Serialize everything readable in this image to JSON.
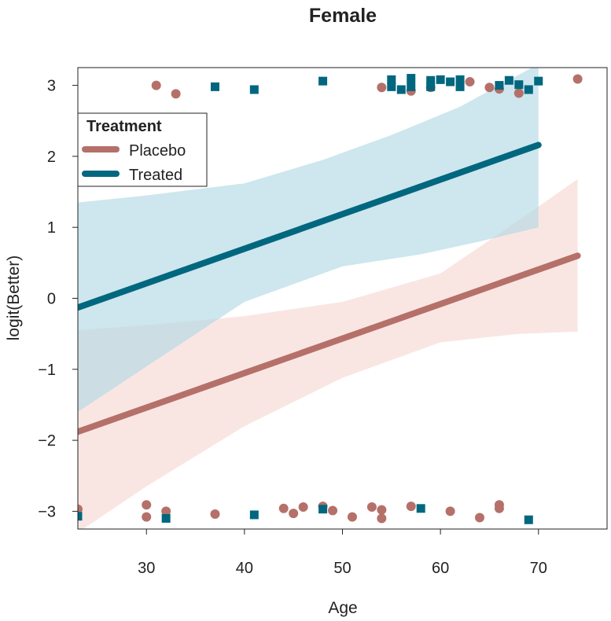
{
  "chart_data": {
    "type": "line",
    "title": "Female",
    "xlabel": "Age",
    "ylabel": "logit(Better)",
    "xlim": [
      23,
      77
    ],
    "ylim": [
      -3.25,
      3.25
    ],
    "xticks": [
      30,
      40,
      50,
      60,
      70
    ],
    "yticks": [
      -3,
      -2,
      -1,
      0,
      1,
      2,
      3
    ],
    "ytick_labels": [
      "−3",
      "−2",
      "−1",
      "0",
      "1",
      "2",
      "3"
    ],
    "grid": false,
    "legend": {
      "title": "Treatment",
      "placement": "top-left",
      "entries": [
        "Placebo",
        "Treated"
      ]
    },
    "series": [
      {
        "name": "Placebo",
        "color": "#B5706A",
        "band_color": "#F6DCD7",
        "marker": "circle",
        "fit": [
          [
            23,
            -1.88
          ],
          [
            74,
            0.6
          ]
        ],
        "ci_upper": [
          [
            23,
            -0.45
          ],
          [
            30,
            -0.38
          ],
          [
            40,
            -0.25
          ],
          [
            50,
            -0.05
          ],
          [
            60,
            0.35
          ],
          [
            68,
            1.1
          ],
          [
            74,
            1.68
          ]
        ],
        "ci_lower": [
          [
            23,
            -3.3
          ],
          [
            30,
            -2.65
          ],
          [
            40,
            -1.8
          ],
          [
            50,
            -1.12
          ],
          [
            60,
            -0.62
          ],
          [
            68,
            -0.5
          ],
          [
            74,
            -0.47
          ]
        ],
        "points_top": [
          [
            31,
            3.0
          ],
          [
            33,
            2.88
          ],
          [
            54,
            2.97
          ],
          [
            57,
            2.92
          ],
          [
            59,
            2.97
          ],
          [
            63,
            3.05
          ],
          [
            65,
            2.97
          ],
          [
            66,
            2.95
          ],
          [
            68,
            2.89
          ],
          [
            74,
            3.09
          ]
        ],
        "points_bottom": [
          [
            23,
            -2.97
          ],
          [
            30,
            -2.91
          ],
          [
            30,
            -3.08
          ],
          [
            32,
            -3.0
          ],
          [
            37,
            -3.04
          ],
          [
            44,
            -2.96
          ],
          [
            45,
            -3.03
          ],
          [
            46,
            -2.94
          ],
          [
            48,
            -2.93
          ],
          [
            49,
            -2.99
          ],
          [
            51,
            -3.08
          ],
          [
            53,
            -2.94
          ],
          [
            54,
            -2.98
          ],
          [
            54,
            -3.1
          ],
          [
            57,
            -2.93
          ],
          [
            61,
            -3.0
          ],
          [
            64,
            -3.09
          ],
          [
            66,
            -2.91
          ],
          [
            66,
            -2.96
          ]
        ]
      },
      {
        "name": "Treated",
        "color": "#00677F",
        "band_color": "#B3D8E5",
        "marker": "square",
        "fit": [
          [
            23,
            -0.13
          ],
          [
            70,
            2.16
          ]
        ],
        "ci_upper": [
          [
            23,
            1.35
          ],
          [
            30,
            1.45
          ],
          [
            40,
            1.62
          ],
          [
            48,
            1.95
          ],
          [
            55,
            2.3
          ],
          [
            62,
            2.7
          ],
          [
            70,
            3.3
          ]
        ],
        "ci_lower": [
          [
            23,
            -1.6
          ],
          [
            30,
            -0.96
          ],
          [
            40,
            -0.05
          ],
          [
            50,
            0.45
          ],
          [
            58,
            0.62
          ],
          [
            64,
            0.8
          ],
          [
            70,
            1.0
          ]
        ],
        "points_top": [
          [
            37,
            2.98
          ],
          [
            41,
            2.94
          ],
          [
            48,
            3.06
          ],
          [
            55,
            3.08
          ],
          [
            55,
            2.98
          ],
          [
            56,
            2.94
          ],
          [
            57,
            3.1
          ],
          [
            57,
            2.98
          ],
          [
            59,
            3.07
          ],
          [
            59,
            2.98
          ],
          [
            60,
            3.08
          ],
          [
            61,
            3.05
          ],
          [
            62,
            3.08
          ],
          [
            62,
            2.98
          ],
          [
            66,
            3.0
          ],
          [
            67,
            3.07
          ],
          [
            68,
            3.01
          ],
          [
            69,
            2.94
          ],
          [
            70,
            3.06
          ]
        ],
        "points_bottom": [
          [
            23,
            -3.07
          ],
          [
            32,
            -3.1
          ],
          [
            41,
            -3.05
          ],
          [
            48,
            -2.97
          ],
          [
            58,
            -2.96
          ],
          [
            69,
            -3.12
          ]
        ]
      }
    ]
  }
}
